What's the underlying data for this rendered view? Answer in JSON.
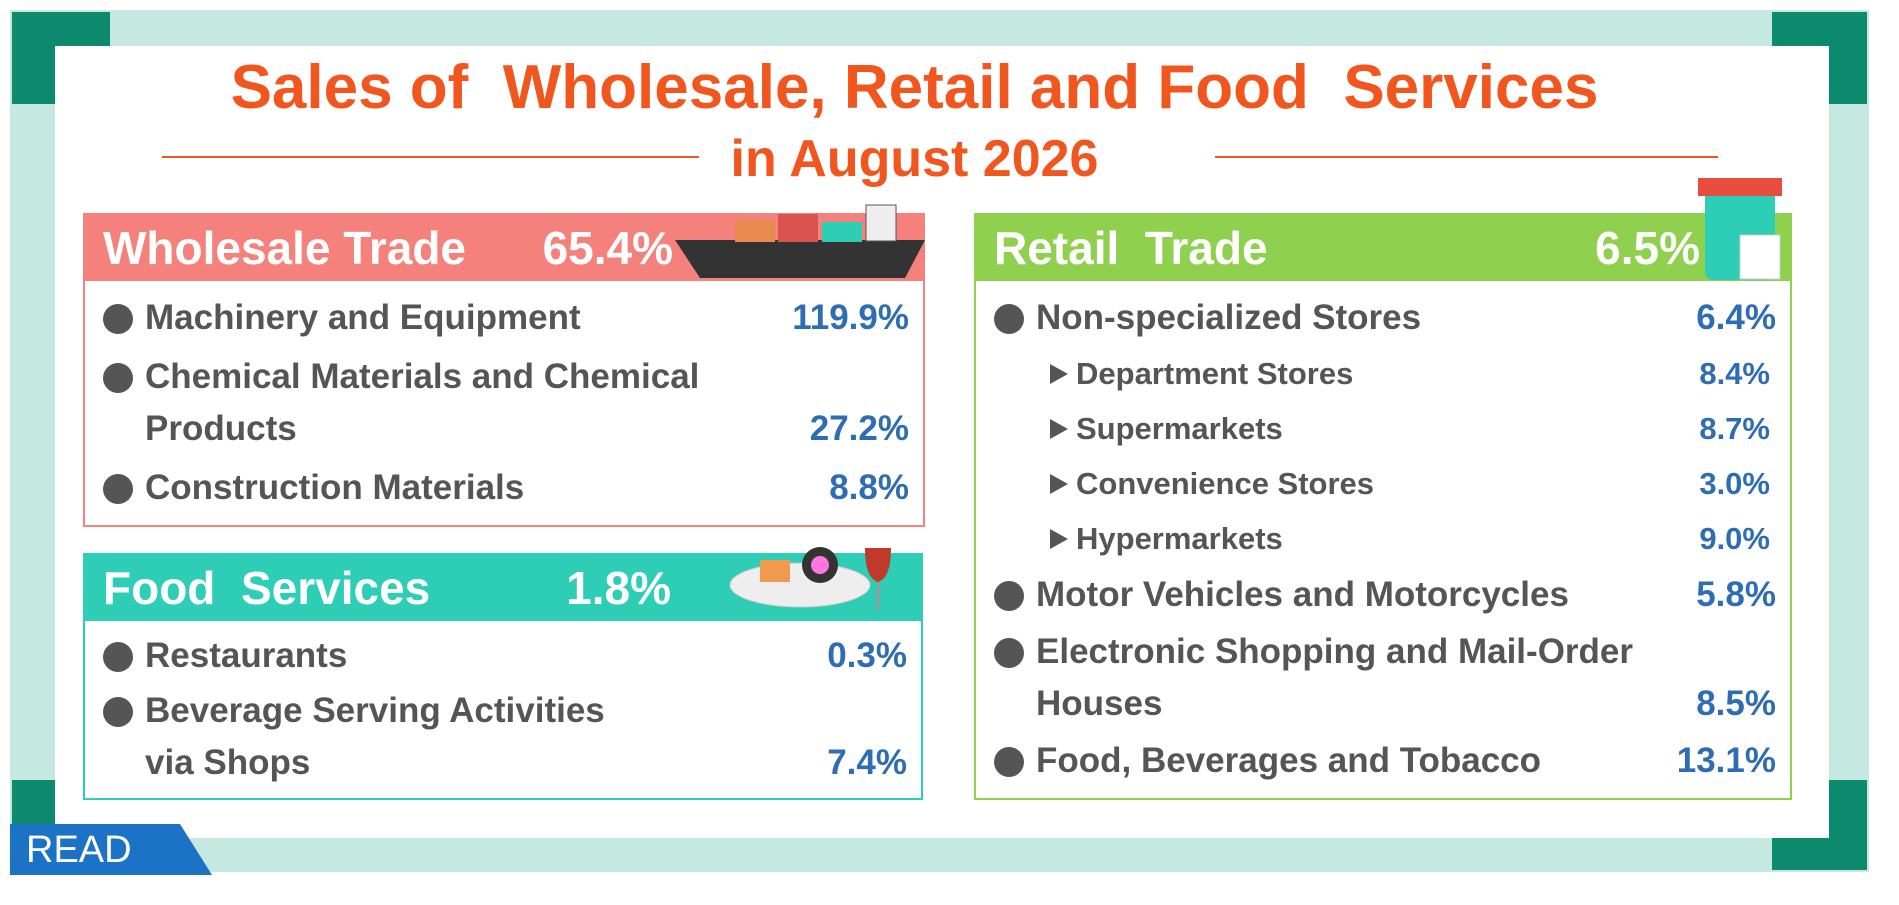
{
  "title": "Sales of  Wholesale, Retail and Food  Services",
  "subtitle": "in August 2026",
  "sections": [
    {
      "name": "Wholesale Trade",
      "value": "65.4%",
      "color": "#f4817b",
      "items": [
        {
          "label": [
            "Machinery and Equipment"
          ],
          "value": "119.9%"
        },
        {
          "label": [
            "Chemical Materials and Chemical",
            "Products"
          ],
          "value": "27.2%"
        },
        {
          "label": [
            "Construction Materials"
          ],
          "value": "8.8%"
        }
      ]
    },
    {
      "name": "Food  Services",
      "value": "1.8%",
      "color": "#2ecdb6",
      "items": [
        {
          "label": [
            "Restaurants"
          ],
          "value": "0.3%"
        },
        {
          "label": [
            "Beverage Serving Activities",
            "via Shops"
          ],
          "value": "7.4%"
        }
      ]
    },
    {
      "name": "Retail  Trade",
      "value": "6.5%",
      "color": "#8fd14f",
      "items": [
        {
          "label": [
            "Non-specialized Stores"
          ],
          "value": "6.4%",
          "subitems": [
            {
              "label": "Department Stores",
              "value": "8.4%"
            },
            {
              "label": "Supermarkets",
              "value": "8.7%"
            },
            {
              "label": "Convenience Stores",
              "value": "3.0%"
            },
            {
              "label": "Hypermarkets",
              "value": "9.0%"
            }
          ]
        },
        {
          "label": [
            "Motor Vehicles and Motorcycles"
          ],
          "value": "5.8%"
        },
        {
          "label": [
            "Electronic Shopping and Mail-Order",
            "Houses"
          ],
          "value": "8.5%"
        },
        {
          "label": [
            "Food, Beverages and Tobacco"
          ],
          "value": "13.1%"
        }
      ]
    }
  ],
  "badge": "READ"
}
